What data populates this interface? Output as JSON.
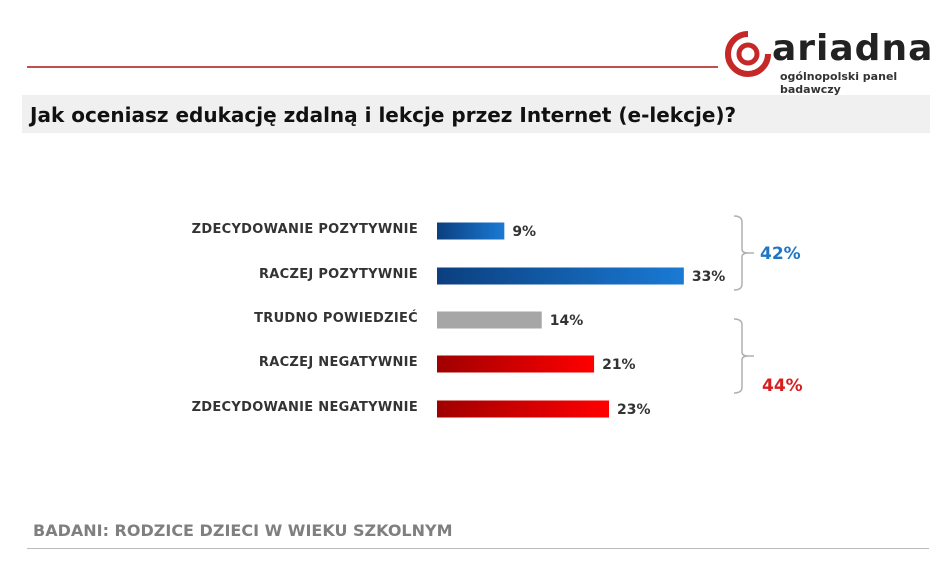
{
  "brand": {
    "name": "ariadna",
    "tagline": "ogólnopolski panel badawczy",
    "color": "#c62828"
  },
  "title": "Jak oceniasz edukację zdalną i lekcje przez Internet (e-lekcje)?",
  "footer": "BADANI: RODZICE DZIECI W WIEKU SZKOLNYM",
  "chart_data": {
    "type": "bar",
    "orientation": "horizontal",
    "categories": [
      "ZDECYDOWANIE  POZYTYWNIE",
      "RACZEJ POZYTYWNIE",
      "TRUDNO  POWIEDZIEĆ",
      "RACZEJ NEGATYWNIE",
      "ZDECYDOWANIE  NEGATYWNIE"
    ],
    "values": [
      9,
      33,
      14,
      21,
      23
    ],
    "value_labels": [
      "9%",
      "33%",
      "14%",
      "21%",
      "23%"
    ],
    "colors": [
      [
        "#0b3f7f",
        "#1a7ad4"
      ],
      [
        "#0b3f7f",
        "#1a7ad4"
      ],
      [
        "#a6a6a6",
        "#a6a6a6"
      ],
      [
        "#a00000",
        "#ff0000"
      ],
      [
        "#a00000",
        "#ff0000"
      ]
    ],
    "groups": [
      {
        "label": "42%",
        "color": "#1f77c4",
        "members": [
          0,
          1
        ]
      },
      {
        "label": "44%",
        "color": "#d42020",
        "members": [
          3,
          4
        ]
      }
    ],
    "grid": false
  }
}
